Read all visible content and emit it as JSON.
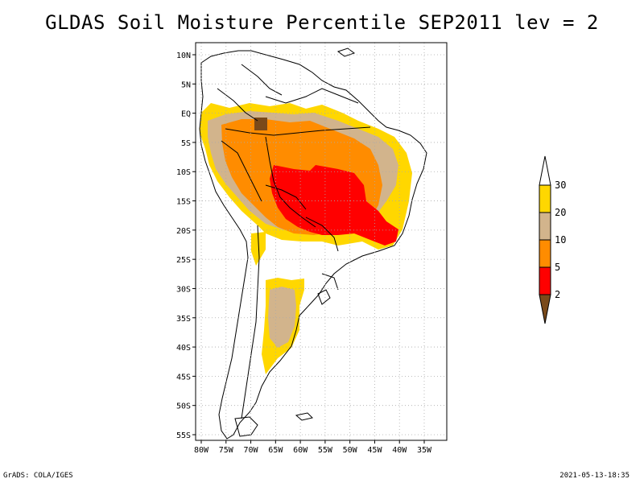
{
  "title": "GLDAS Soil Moisture Percentile SEP2011 lev = 2",
  "footer": {
    "credit": "GrADS: COLA/IGES",
    "timestamp": "2021-05-13-18:35"
  },
  "map": {
    "region": "South America",
    "lon_range": [
      -81,
      -33
    ],
    "lat_range": [
      -56,
      12
    ],
    "y_ticks": [
      {
        "lat": 10,
        "label": "10N"
      },
      {
        "lat": 5,
        "label": "5N"
      },
      {
        "lat": 0,
        "label": "EQ"
      },
      {
        "lat": -5,
        "label": "5S"
      },
      {
        "lat": -10,
        "label": "10S"
      },
      {
        "lat": -15,
        "label": "15S"
      },
      {
        "lat": -20,
        "label": "20S"
      },
      {
        "lat": -25,
        "label": "25S"
      },
      {
        "lat": -30,
        "label": "30S"
      },
      {
        "lat": -35,
        "label": "35S"
      },
      {
        "lat": -40,
        "label": "40S"
      },
      {
        "lat": -45,
        "label": "45S"
      },
      {
        "lat": -50,
        "label": "50S"
      },
      {
        "lat": -55,
        "label": "55S"
      }
    ],
    "x_ticks": [
      {
        "lon": -80,
        "label": "80W"
      },
      {
        "lon": -75,
        "label": "75W"
      },
      {
        "lon": -70,
        "label": "70W"
      },
      {
        "lon": -65,
        "label": "65W"
      },
      {
        "lon": -60,
        "label": "60W"
      },
      {
        "lon": -55,
        "label": "55W"
      },
      {
        "lon": -50,
        "label": "50W"
      },
      {
        "lon": -45,
        "label": "45W"
      },
      {
        "lon": -40,
        "label": "40W"
      },
      {
        "lon": -35,
        "label": "35W"
      }
    ],
    "grid": "dotted"
  },
  "legend": {
    "levels": [
      {
        "label": "2",
        "color": "#7a4a1a"
      },
      {
        "label": "5",
        "color": "#ff0000"
      },
      {
        "label": "10",
        "color": "#ff8c00"
      },
      {
        "label": "20",
        "color": "#d2b48c"
      },
      {
        "label": "30",
        "color": "#ffd700"
      }
    ],
    "over_color": "#ffffff",
    "under_color": "#7a4a1a"
  },
  "colors": {
    "below_2": "#7a4a1a",
    "pct_2_5": "#ff0000",
    "pct_5_10": "#ff8c00",
    "pct_10_20": "#d2b48c",
    "pct_20_30": "#ffd700"
  }
}
